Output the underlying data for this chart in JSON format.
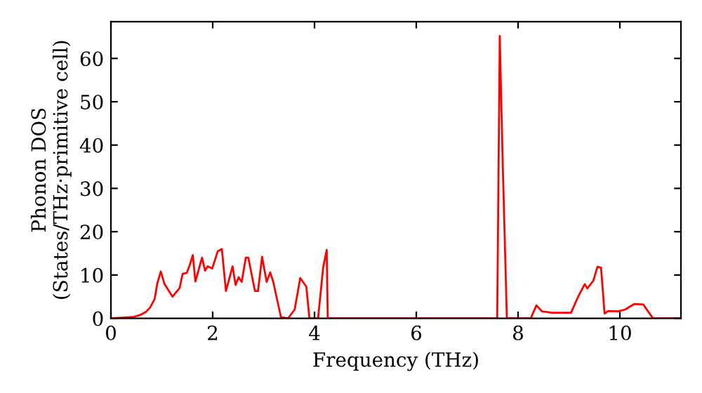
{
  "chart_data": {
    "type": "line",
    "xlabel": "Frequency (THz)",
    "ylabel": "Phonon DOS\n(States/THz·primitive cell)",
    "x": [
      0,
      0.44,
      0.58,
      0.69,
      0.77,
      0.86,
      0.91,
      0.98,
      1.05,
      1.21,
      1.35,
      1.41,
      1.49,
      1.54,
      1.61,
      1.66,
      1.79,
      1.85,
      1.9,
      1.99,
      2.1,
      2.18,
      2.26,
      2.39,
      2.45,
      2.51,
      2.57,
      2.65,
      2.7,
      2.83,
      2.89,
      2.97,
      3.06,
      3.13,
      3.19,
      3.34,
      3.48,
      3.61,
      3.72,
      3.84,
      3.9,
      4.07,
      4.17,
      4.24,
      4.26,
      7.59,
      7.64,
      7.7,
      7.78,
      8.25,
      8.36,
      8.47,
      8.67,
      9.04,
      9.18,
      9.31,
      9.36,
      9.48,
      9.56,
      9.63,
      9.7,
      9.77,
      9.96,
      10.1,
      10.28,
      10.46,
      10.65,
      11.2
    ],
    "series": [
      {
        "color": "#ff0000",
        "values": [
          0,
          0.3,
          0.8,
          1.5,
          2.5,
          4.5,
          8,
          10.8,
          8,
          5,
          7,
          10.3,
          10.5,
          12,
          14.6,
          8.5,
          14,
          11,
          12,
          11.5,
          15.5,
          16,
          6.3,
          12,
          7.7,
          9.5,
          8.4,
          14,
          14,
          6.3,
          6.3,
          14.2,
          8.4,
          10.6,
          8.4,
          0.3,
          0,
          2,
          9.3,
          7.3,
          0,
          0,
          11.7,
          15.8,
          0,
          0,
          65.2,
          35,
          0,
          0,
          3,
          1.6,
          1.3,
          1.3,
          5,
          7.9,
          6.9,
          8.7,
          11.9,
          11.7,
          1.1,
          1.7,
          1.6,
          2,
          3.3,
          3.2,
          0,
          0
        ]
      }
    ],
    "xlim": [
      0,
      11.2
    ],
    "ylim": [
      0,
      68.5
    ],
    "xticks": [
      0,
      2,
      4,
      6,
      8,
      10
    ],
    "yticks": [
      0,
      10,
      20,
      30,
      40,
      50,
      60
    ],
    "grid": false,
    "line_style": "solid",
    "marker": "none"
  }
}
